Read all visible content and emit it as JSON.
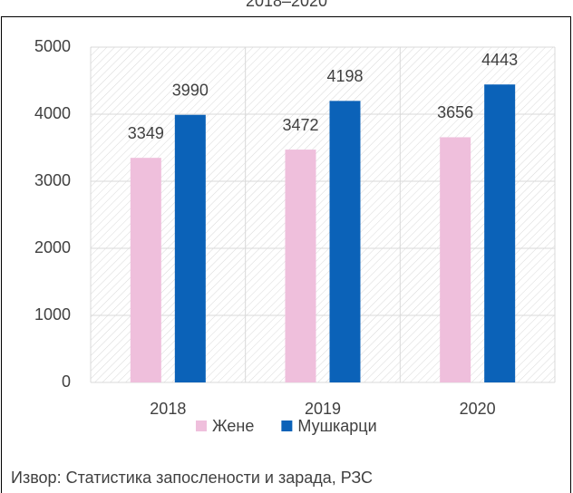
{
  "chart_data": {
    "type": "bar",
    "title": "2018–2020",
    "categories": [
      "2018",
      "2019",
      "2020"
    ],
    "series": [
      {
        "name": "Жене",
        "color": "#efbfdc",
        "values": [
          3349,
          3472,
          3656
        ]
      },
      {
        "name": "Мушкарци",
        "color": "#0b62b8",
        "values": [
          3990,
          4198,
          4443
        ]
      }
    ],
    "ylim": [
      0,
      5000
    ],
    "yticks": [
      0,
      1000,
      2000,
      3000,
      4000,
      5000
    ],
    "grid": true,
    "legend": "bottom",
    "source": "Извор: Статистика запослености и зарада, РЗС"
  }
}
